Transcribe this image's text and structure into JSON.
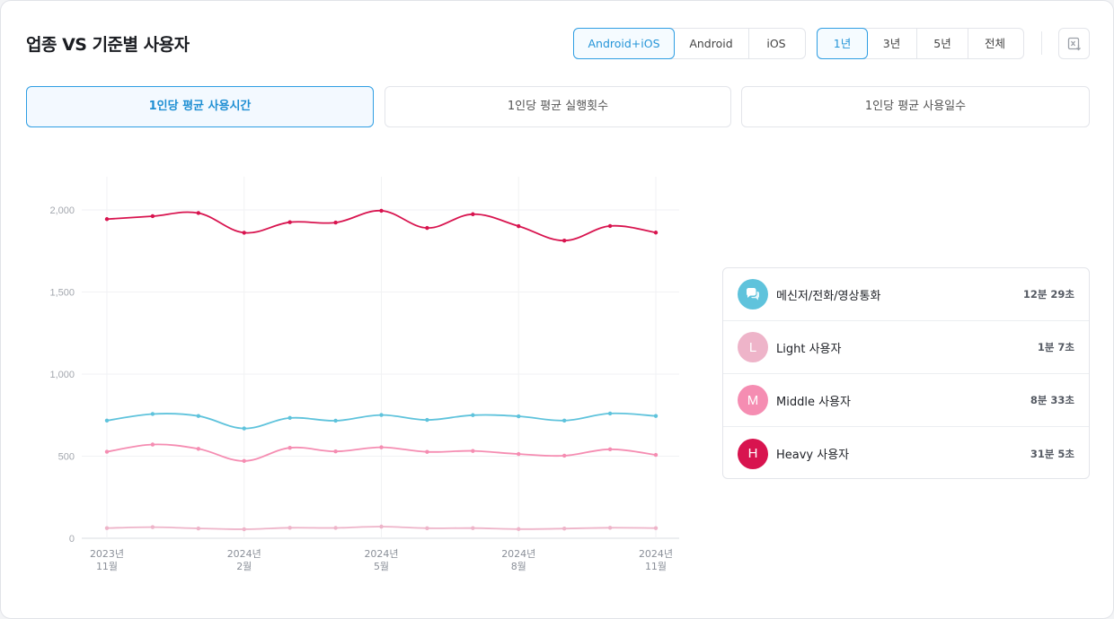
{
  "header": {
    "title": "업종 VS 기준별 사용자"
  },
  "platform_toggle": [
    {
      "label": "Android+iOS",
      "active": true
    },
    {
      "label": "Android",
      "active": false
    },
    {
      "label": "iOS",
      "active": false
    }
  ],
  "period_toggle": [
    {
      "label": "1년",
      "active": true
    },
    {
      "label": "3년",
      "active": false
    },
    {
      "label": "5년",
      "active": false
    },
    {
      "label": "전체",
      "active": false
    }
  ],
  "export_icon": "excel-download-icon",
  "metric_tabs": [
    {
      "label": "1인당 평균 사용시간",
      "active": true
    },
    {
      "label": "1인당 평균 실행횟수",
      "active": false
    },
    {
      "label": "1인당 평균 사용일수",
      "active": false
    }
  ],
  "chart_data": {
    "type": "line",
    "x_ticks": [
      {
        "index": 0,
        "line1": "2023년",
        "line2": "11월"
      },
      {
        "index": 3,
        "line1": "2024년",
        "line2": "2월"
      },
      {
        "index": 6,
        "line1": "2024년",
        "line2": "5월"
      },
      {
        "index": 9,
        "line1": "2024년",
        "line2": "8월"
      },
      {
        "index": 12,
        "line1": "2024년",
        "line2": "11월"
      }
    ],
    "point_count": 13,
    "ylim": [
      0,
      2200
    ],
    "y_ticks": [
      0,
      500,
      1000,
      1500,
      2000
    ],
    "y_tick_labels": [
      "0",
      "500",
      "1,000",
      "1,500",
      "2,000"
    ],
    "grid": true,
    "series": [
      {
        "name": "메신저/전화/영상통화",
        "color": "#5fc3dc",
        "values": [
          717,
          757,
          745,
          669,
          733,
          716,
          751,
          721,
          750,
          743,
          717,
          760,
          745
        ]
      },
      {
        "name": "Light 사용자",
        "color": "#eeb4c9",
        "values": [
          62,
          68,
          60,
          55,
          64,
          63,
          71,
          61,
          62,
          56,
          59,
          64,
          62
        ]
      },
      {
        "name": "Middle 사용자",
        "color": "#f58db2",
        "values": [
          527,
          571,
          545,
          471,
          551,
          529,
          554,
          526,
          532,
          513,
          503,
          542,
          508
        ]
      },
      {
        "name": "Heavy 사용자",
        "color": "#d8144f",
        "values": [
          1944,
          1962,
          1981,
          1861,
          1925,
          1923,
          1995,
          1890,
          1974,
          1901,
          1813,
          1902,
          1862
        ]
      }
    ]
  },
  "legend": [
    {
      "badge_text": "",
      "icon": "chat-bubbles-icon",
      "color": "#5fc3dc",
      "name": "메신저/전화/영상통화",
      "value": "12분 29초"
    },
    {
      "badge_text": "L",
      "color": "#eeb4c9",
      "name": "Light 사용자",
      "value": "1분 7초"
    },
    {
      "badge_text": "M",
      "color": "#f58db2",
      "name": "Middle 사용자",
      "value": "8분 33초"
    },
    {
      "badge_text": "H",
      "color": "#d8144f",
      "name": "Heavy 사용자",
      "value": "31분 5초"
    }
  ]
}
